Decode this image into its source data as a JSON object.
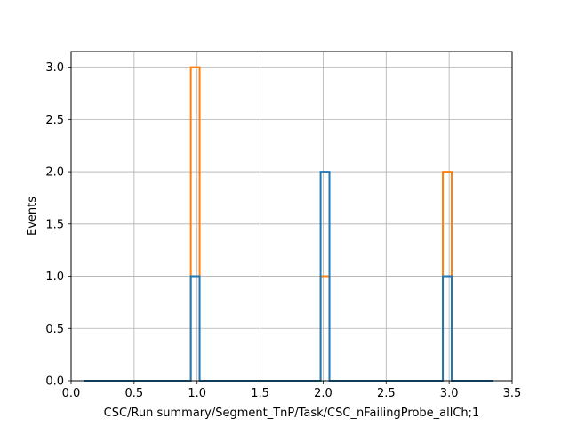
{
  "chart_data": {
    "type": "step-histogram",
    "xlabel": "CSC/Run summary/Segment_TnP/Task/CSC_nFailingProbe_allCh;1",
    "ylabel": "Events",
    "xlim": [
      0,
      3.5
    ],
    "ylim": [
      0,
      3.15
    ],
    "xticks": [
      0.0,
      0.5,
      1.0,
      1.5,
      2.0,
      2.5,
      3.0,
      3.5
    ],
    "xtick_labels": [
      "0.0",
      "0.5",
      "1.0",
      "1.5",
      "2.0",
      "2.5",
      "3.0",
      "3.5"
    ],
    "yticks": [
      0.0,
      0.5,
      1.0,
      1.5,
      2.0,
      2.5,
      3.0
    ],
    "ytick_labels": [
      "0.0",
      "0.5",
      "1.0",
      "1.5",
      "2.0",
      "2.5",
      "3.0"
    ],
    "grid": true,
    "series": [
      {
        "color": "#ff7f0e",
        "x_start": 0.1,
        "x_end": 3.35,
        "bins": [
          {
            "x0": 0.95,
            "x1": 1.02,
            "y": 3
          },
          {
            "x0": 1.98,
            "x1": 2.05,
            "y": 1
          },
          {
            "x0": 2.95,
            "x1": 3.02,
            "y": 2
          }
        ]
      },
      {
        "color": "#1f77b4",
        "x_start": 0.1,
        "x_end": 3.35,
        "bins": [
          {
            "x0": 0.95,
            "x1": 1.02,
            "y": 1
          },
          {
            "x0": 1.98,
            "x1": 2.05,
            "y": 2
          },
          {
            "x0": 2.95,
            "x1": 3.02,
            "y": 1
          }
        ]
      }
    ]
  }
}
